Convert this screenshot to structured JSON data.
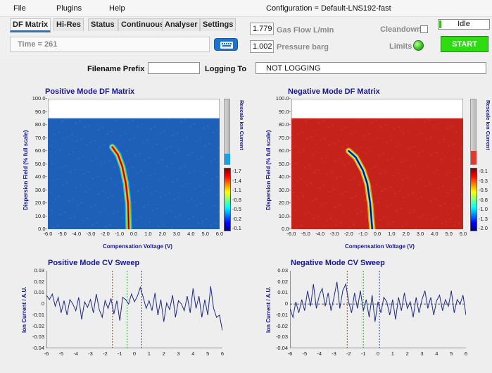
{
  "menu": [
    "File",
    "Plugins",
    "Help"
  ],
  "configuration": "Configuration = Default-LNS192-fast",
  "tabs": [
    "DF Matrix",
    "Hi-Res",
    "Status",
    "Continuous",
    "Analyser",
    "Settings"
  ],
  "active_tab": "DF Matrix",
  "time": "Time = 261",
  "gas_flow": {
    "value": "1.779",
    "label": "Gas Flow  L/min"
  },
  "pressure": {
    "value": "1.002",
    "label": "Pressure  barg"
  },
  "cleandown": {
    "label": "Cleandown",
    "checked": false
  },
  "limits": {
    "label": "Limits",
    "led_color": "#2fbf1a"
  },
  "status": "Idle",
  "start_button": "START",
  "filename_prefix": {
    "label": "Filename Prefix",
    "value": ""
  },
  "logging": {
    "label": "Logging To",
    "value": "NOT LOGGING"
  },
  "positive_matrix": {
    "title": "Positive Mode DF Matrix",
    "ylabel": "Dispersion Field (% full scale)",
    "xlabel": "Compensation Voltage (V)",
    "rescale_label": "Rescale Ion Current",
    "y_ticks": [
      "100.0-",
      "90.0-",
      "80.0-",
      "70.0-",
      "60.0-",
      "50.0-",
      "40.0-",
      "30.0-",
      "20.0-",
      "10.0-",
      "0.0-"
    ],
    "x_ticks": [
      "-6.0",
      "-5.0",
      "-4.0",
      "-3.0",
      "-2.0",
      "-1.0",
      "0.0",
      "1.0",
      "2.0",
      "3.0",
      "4.0",
      "5.0",
      "6.0"
    ],
    "scale_ticks": [
      "-1.7",
      "-1.4",
      "-1.1",
      "-0.8",
      "-0.5",
      "-0.2",
      "-0.1"
    ],
    "colors": {
      "background": "#1e5fb8",
      "rescale": "#1aa0e6"
    }
  },
  "negative_matrix": {
    "title": "Negative Mode DF Matrix",
    "ylabel": "Dispersion Field (% full scale)",
    "xlabel": "Compensation Voltage (V)",
    "rescale_label": "Rescale Ion Current",
    "y_ticks": [
      "100.0-",
      "90.0-",
      "80.0-",
      "70.0-",
      "60.0-",
      "50.0-",
      "40.0-",
      "30.0-",
      "20.0-",
      "10.0-",
      "0.0-"
    ],
    "x_ticks": [
      "-6.0",
      "-5.0",
      "-4.0",
      "-3.0",
      "-2.0",
      "-1.0",
      "0.0",
      "1.0",
      "2.0",
      "3.0",
      "4.0",
      "5.0",
      "6.0"
    ],
    "scale_ticks": [
      "-0.1",
      "-0.3",
      "-0.5",
      "-0.8",
      "-1.0",
      "-1.3",
      "-2.0"
    ],
    "colors": {
      "background": "#c4221a",
      "rescale": "#e23a30"
    }
  },
  "positive_sweep": {
    "title": "Positive Mode CV Sweep",
    "ylabel": "Ion Current / A.U.",
    "y_ticks": [
      "0.03",
      "0.02",
      "0.01",
      "0",
      "-0.01",
      "-0.02",
      "-0.03",
      "-0.04"
    ],
    "x_ticks": [
      "-6",
      "-5",
      "-4",
      "-3",
      "-2",
      "-1",
      "0",
      "1",
      "2",
      "3",
      "4",
      "5",
      "6"
    ]
  },
  "negative_sweep": {
    "title": "Negative Mode CV Sweep",
    "ylabel": "Ion Current / A.U.",
    "y_ticks": [
      "0.03",
      "0.02",
      "0.01",
      "0",
      "-0.01",
      "-0.02",
      "-0.03",
      "-0.04"
    ],
    "x_ticks": [
      "-6",
      "-5",
      "-4",
      "-3",
      "-2",
      "-1",
      "0",
      "1",
      "2",
      "3",
      "4",
      "5",
      "6"
    ]
  },
  "chart_data": [
    {
      "type": "heatmap",
      "title": "Positive Mode DF Matrix",
      "xlabel": "Compensation Voltage (V)",
      "ylabel": "Dispersion Field (% full scale)",
      "xlim": [
        -6,
        6
      ],
      "ylim": [
        0,
        100
      ],
      "colorscale": "jet",
      "ridge": [
        {
          "x": -0.35,
          "y": 0
        },
        {
          "x": -0.4,
          "y": 20
        },
        {
          "x": -0.55,
          "y": 35
        },
        {
          "x": -0.8,
          "y": 48
        },
        {
          "x": -1.1,
          "y": 57
        },
        {
          "x": -1.5,
          "y": 63
        }
      ],
      "scanned_range_y": [
        0,
        85
      ]
    },
    {
      "type": "heatmap",
      "title": "Negative Mode DF Matrix",
      "xlabel": "Compensation Voltage (V)",
      "ylabel": "Dispersion Field (% full scale)",
      "xlim": [
        -6,
        6
      ],
      "ylim": [
        0,
        100
      ],
      "colorscale": "jet",
      "ridge": [
        {
          "x": -0.35,
          "y": 0
        },
        {
          "x": -0.5,
          "y": 20
        },
        {
          "x": -0.7,
          "y": 35
        },
        {
          "x": -1.0,
          "y": 45
        },
        {
          "x": -1.5,
          "y": 55
        },
        {
          "x": -2.0,
          "y": 60
        }
      ],
      "scanned_range_y": [
        0,
        85
      ]
    },
    {
      "type": "line",
      "title": "Positive Mode CV Sweep",
      "ylabel": "Ion Current / A.U.",
      "xlim": [
        -6,
        6
      ],
      "ylim": [
        -0.04,
        0.03
      ],
      "x": [
        -6.0,
        -5.8,
        -5.6,
        -5.4,
        -5.2,
        -5.0,
        -4.8,
        -4.6,
        -4.4,
        -4.2,
        -4.0,
        -3.8,
        -3.6,
        -3.4,
        -3.2,
        -3.0,
        -2.8,
        -2.6,
        -2.4,
        -2.2,
        -2.0,
        -1.8,
        -1.6,
        -1.4,
        -1.2,
        -1.0,
        -0.8,
        -0.6,
        -0.4,
        -0.2,
        0.0,
        0.2,
        0.4,
        0.6,
        0.8,
        1.0,
        1.2,
        1.4,
        1.6,
        1.8,
        2.0,
        2.2,
        2.4,
        2.6,
        2.8,
        3.0,
        3.2,
        3.4,
        3.6,
        3.8,
        4.0,
        4.2,
        4.4,
        4.6,
        4.8,
        5.0,
        5.2,
        5.4,
        5.6,
        5.8,
        6.0
      ],
      "series": [
        {
          "values": [
            0.008,
            0.004,
            0.009,
            -0.002,
            0.006,
            -0.008,
            0.003,
            -0.01,
            0.004,
            0.0,
            -0.006,
            0.006,
            -0.014,
            0.002,
            -0.003,
            0.004,
            -0.008,
            0.009,
            -0.005,
            -0.012,
            0.003,
            -0.004,
            0.005,
            -0.009,
            0.003,
            -0.015,
            0.006,
            0.004,
            0.0,
            0.009,
            0.002,
            0.007,
            0.015,
            0.006,
            -0.004,
            0.003,
            -0.006,
            0.01,
            -0.01,
            0.004,
            -0.016,
            0.001,
            -0.005,
            0.008,
            -0.012,
            0.003,
            0.0,
            -0.006,
            0.007,
            -0.008,
            0.014,
            -0.004,
            0.007,
            -0.012,
            0.004,
            -0.01,
            0.016,
            -0.004,
            -0.012,
            -0.01,
            -0.024
          ]
        }
      ],
      "markers": [
        {
          "x": -1.5,
          "color": "#c0392b"
        },
        {
          "x": -0.5,
          "color": "#27a02b"
        },
        {
          "x": 0.5,
          "color": "#1f3bb5"
        }
      ]
    },
    {
      "type": "line",
      "title": "Negative Mode CV Sweep",
      "ylabel": "Ion Current / A.U.",
      "xlim": [
        -6,
        6
      ],
      "ylim": [
        -0.04,
        0.03
      ],
      "x": [
        -6.0,
        -5.8,
        -5.6,
        -5.4,
        -5.2,
        -5.0,
        -4.8,
        -4.6,
        -4.4,
        -4.2,
        -4.0,
        -3.8,
        -3.6,
        -3.4,
        -3.2,
        -3.0,
        -2.8,
        -2.6,
        -2.4,
        -2.2,
        -2.0,
        -1.8,
        -1.6,
        -1.4,
        -1.2,
        -1.0,
        -0.8,
        -0.6,
        -0.4,
        -0.2,
        0.0,
        0.2,
        0.4,
        0.6,
        0.8,
        1.0,
        1.2,
        1.4,
        1.6,
        1.8,
        2.0,
        2.2,
        2.4,
        2.6,
        2.8,
        3.0,
        3.2,
        3.4,
        3.6,
        3.8,
        4.0,
        4.2,
        4.4,
        4.6,
        4.8,
        5.0,
        5.2,
        5.4,
        5.6,
        5.8,
        6.0
      ],
      "series": [
        {
          "values": [
            -0.004,
            -0.012,
            0.002,
            -0.008,
            0.004,
            -0.006,
            0.012,
            -0.002,
            0.018,
            -0.004,
            0.008,
            0.014,
            -0.002,
            0.01,
            -0.006,
            0.006,
            0.02,
            -0.004,
            0.012,
            0.018,
            0.002,
            -0.008,
            0.01,
            -0.004,
            0.012,
            -0.006,
            0.004,
            -0.012,
            0.008,
            -0.016,
            0.002,
            -0.008,
            0.006,
            0.002,
            -0.01,
            0.004,
            -0.014,
            0.006,
            -0.006,
            0.01,
            -0.004,
            0.002,
            -0.012,
            0.006,
            -0.008,
            0.004,
            0.012,
            -0.004,
            0.006,
            -0.01,
            0.003,
            0.008,
            -0.006,
            0.004,
            -0.002,
            0.012,
            -0.008,
            0.004,
            0.0,
            0.008,
            -0.01
          ]
        }
      ],
      "markers": [
        {
          "x": -2.1,
          "color": "#c0392b"
        },
        {
          "x": -1.0,
          "color": "#27a02b"
        },
        {
          "x": 0.1,
          "color": "#1f3bb5"
        }
      ],
      "zero_line": true
    }
  ]
}
